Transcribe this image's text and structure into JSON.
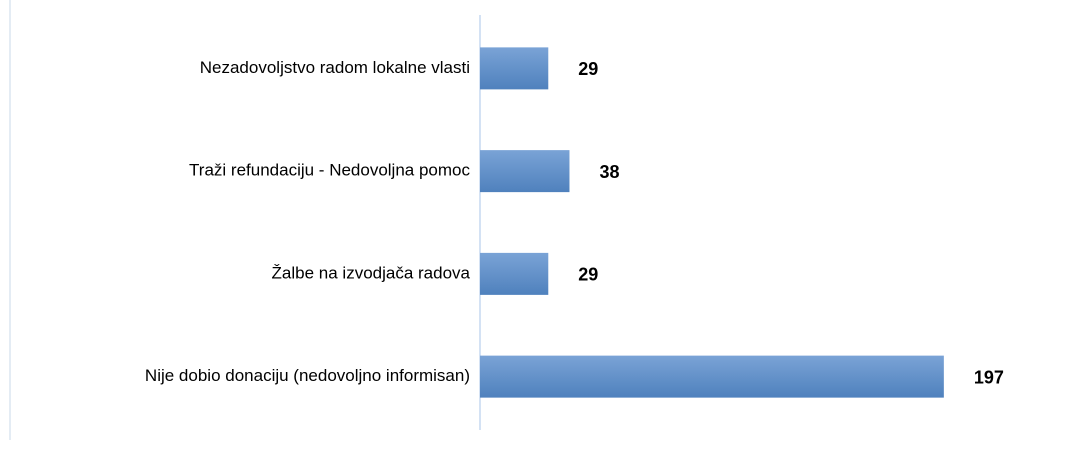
{
  "chart_data": {
    "type": "bar",
    "orientation": "horizontal",
    "categories": [
      "Nezadovoljstvo radom lokalne vlasti",
      "Traži refundaciju - Nedovoljna pomoc",
      "Žalbe na izvodjača radova ",
      "Nije dobio donaciju (nedovoljno informisan)"
    ],
    "values": [
      29,
      38,
      29,
      197
    ],
    "color": "#4f81bd",
    "xlim": [
      0,
      220
    ]
  }
}
